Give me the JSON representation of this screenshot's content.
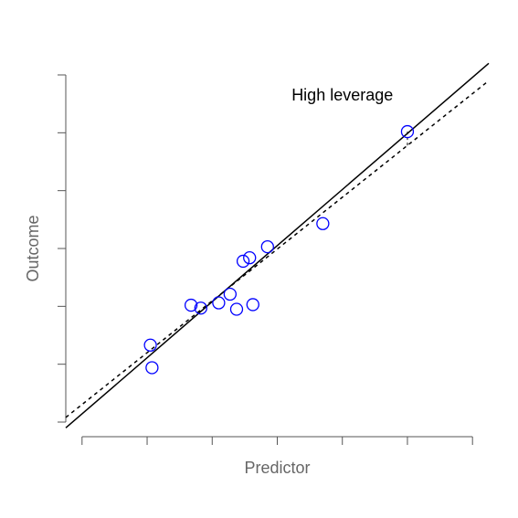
{
  "chart_data": {
    "type": "scatter",
    "title": "",
    "xlabel": "Predictor",
    "ylabel": "Outcome",
    "xlim": [
      0,
      13
    ],
    "ylim": [
      0,
      6
    ],
    "xticks": [
      0.5,
      2.5,
      4.5,
      6.5,
      8.5,
      10.5,
      12.5
    ],
    "yticks": [
      0,
      1,
      2,
      3,
      4,
      5,
      6
    ],
    "point_color": "#0000ff",
    "points": [
      {
        "x": 2.6,
        "y": 1.33
      },
      {
        "x": 2.65,
        "y": 0.94
      },
      {
        "x": 3.85,
        "y": 2.02
      },
      {
        "x": 4.15,
        "y": 1.97
      },
      {
        "x": 4.7,
        "y": 2.06
      },
      {
        "x": 5.05,
        "y": 2.21
      },
      {
        "x": 5.25,
        "y": 1.95
      },
      {
        "x": 5.45,
        "y": 2.78
      },
      {
        "x": 5.65,
        "y": 2.84
      },
      {
        "x": 5.75,
        "y": 2.03
      },
      {
        "x": 6.2,
        "y": 3.03
      },
      {
        "x": 7.9,
        "y": 3.43
      },
      {
        "x": 10.5,
        "y": 5.02
      }
    ],
    "fit_lines": [
      {
        "style": "solid",
        "color": "#000000",
        "x": [
          0,
          13
        ],
        "y": [
          -0.1,
          6.2
        ]
      },
      {
        "style": "dashed",
        "color": "#000000",
        "x": [
          0,
          13
        ],
        "y": [
          0.08,
          5.9
        ]
      }
    ],
    "residual_segment": {
      "x": 10.5,
      "y_from": 5.02,
      "y_to": 4.75
    },
    "annotation": {
      "text": "High leverage",
      "x": 8.5,
      "y": 5.65
    }
  }
}
